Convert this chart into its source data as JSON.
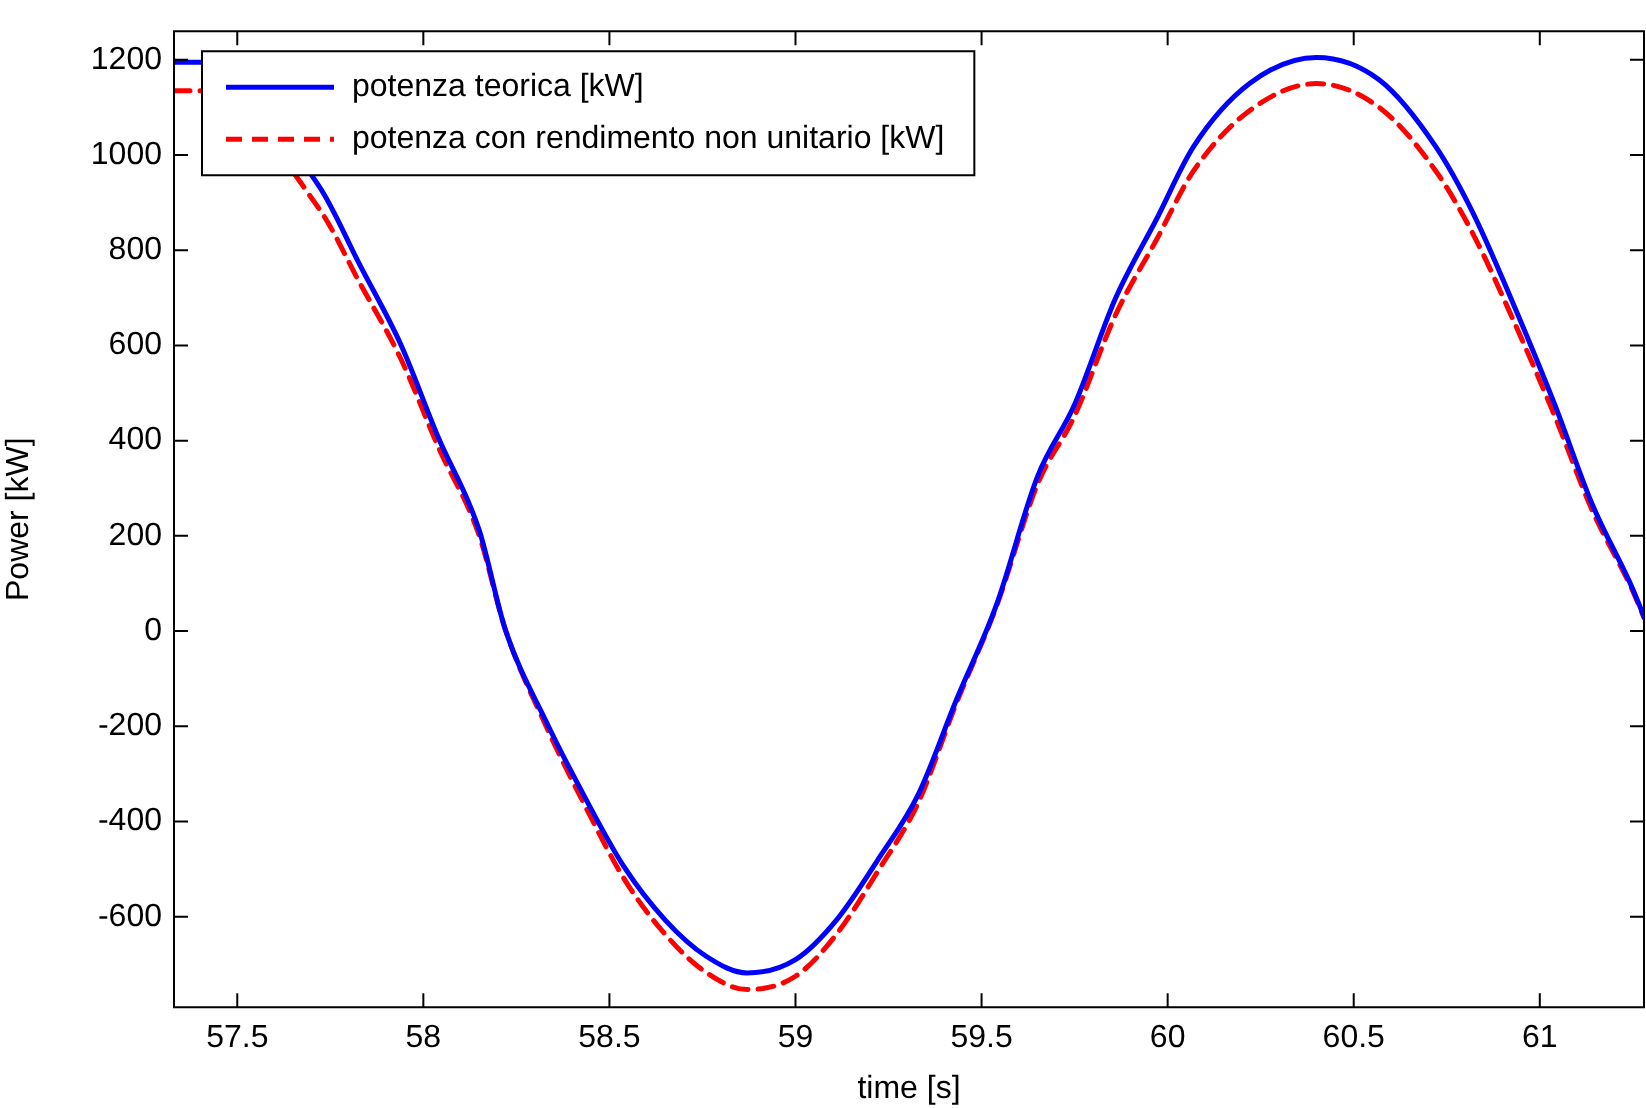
{
  "chart_data": {
    "type": "line",
    "xlabel": "time [s]",
    "ylabel": "Power [kW]",
    "xlim": [
      57.33,
      61.28
    ],
    "xticks": [
      57.5,
      58,
      58.5,
      59,
      59.5,
      60,
      60.5,
      61
    ],
    "ylim": [
      -790,
      1260
    ],
    "yticks": [
      -600,
      -400,
      -200,
      0,
      200,
      400,
      600,
      800,
      1000,
      1200
    ],
    "grid": false,
    "legend": "top left",
    "marker": "none",
    "series": [
      {
        "name": "potenza teorica [kW]",
        "color": "#0000ff",
        "line_style": "solid",
        "x": [
          57.33,
          57.4,
          57.72,
          57.83,
          57.94,
          58.04,
          58.15,
          58.22,
          58.33,
          58.43,
          58.54,
          58.65,
          58.76,
          58.87,
          59.0,
          59.11,
          59.22,
          59.33,
          59.43,
          59.54,
          59.65,
          59.75,
          59.86,
          59.97,
          60.07,
          60.22,
          60.4,
          60.57,
          60.72,
          60.82,
          60.93,
          61.04,
          61.14,
          61.25,
          61.28
        ],
        "values": [
          1195,
          1195,
          934,
          768,
          601,
          407,
          212,
          4,
          -190,
          -343,
          -496,
          -607,
          -683,
          -718,
          -690,
          -607,
          -482,
          -343,
          -149,
          55,
          324,
          476,
          699,
          865,
          1018,
          1150,
          1205,
          1157,
          1018,
          879,
          685,
          476,
          268,
          88,
          30
        ]
      },
      {
        "name": "potenza con rendimento non unitario [kW]",
        "color": "#ff0000",
        "line_style": "dashed",
        "x": [
          57.33,
          57.4,
          57.72,
          57.83,
          57.94,
          58.04,
          58.15,
          58.22,
          58.33,
          58.43,
          58.54,
          58.65,
          58.76,
          58.87,
          59.0,
          59.11,
          59.22,
          59.33,
          59.43,
          59.54,
          59.65,
          59.75,
          59.86,
          59.97,
          60.07,
          60.22,
          60.4,
          60.57,
          60.72,
          60.82,
          60.93,
          61.04,
          61.14,
          61.25,
          61.28
        ],
        "values": [
          1135,
          1135,
          887,
          730,
          571,
          387,
          201,
          4,
          -200,
          -360,
          -521,
          -637,
          -717,
          -753,
          -725,
          -637,
          -506,
          -360,
          -156,
          52,
          308,
          452,
          664,
          822,
          967,
          1093,
          1150,
          1099,
          967,
          835,
          651,
          452,
          255,
          84,
          28
        ]
      }
    ]
  }
}
